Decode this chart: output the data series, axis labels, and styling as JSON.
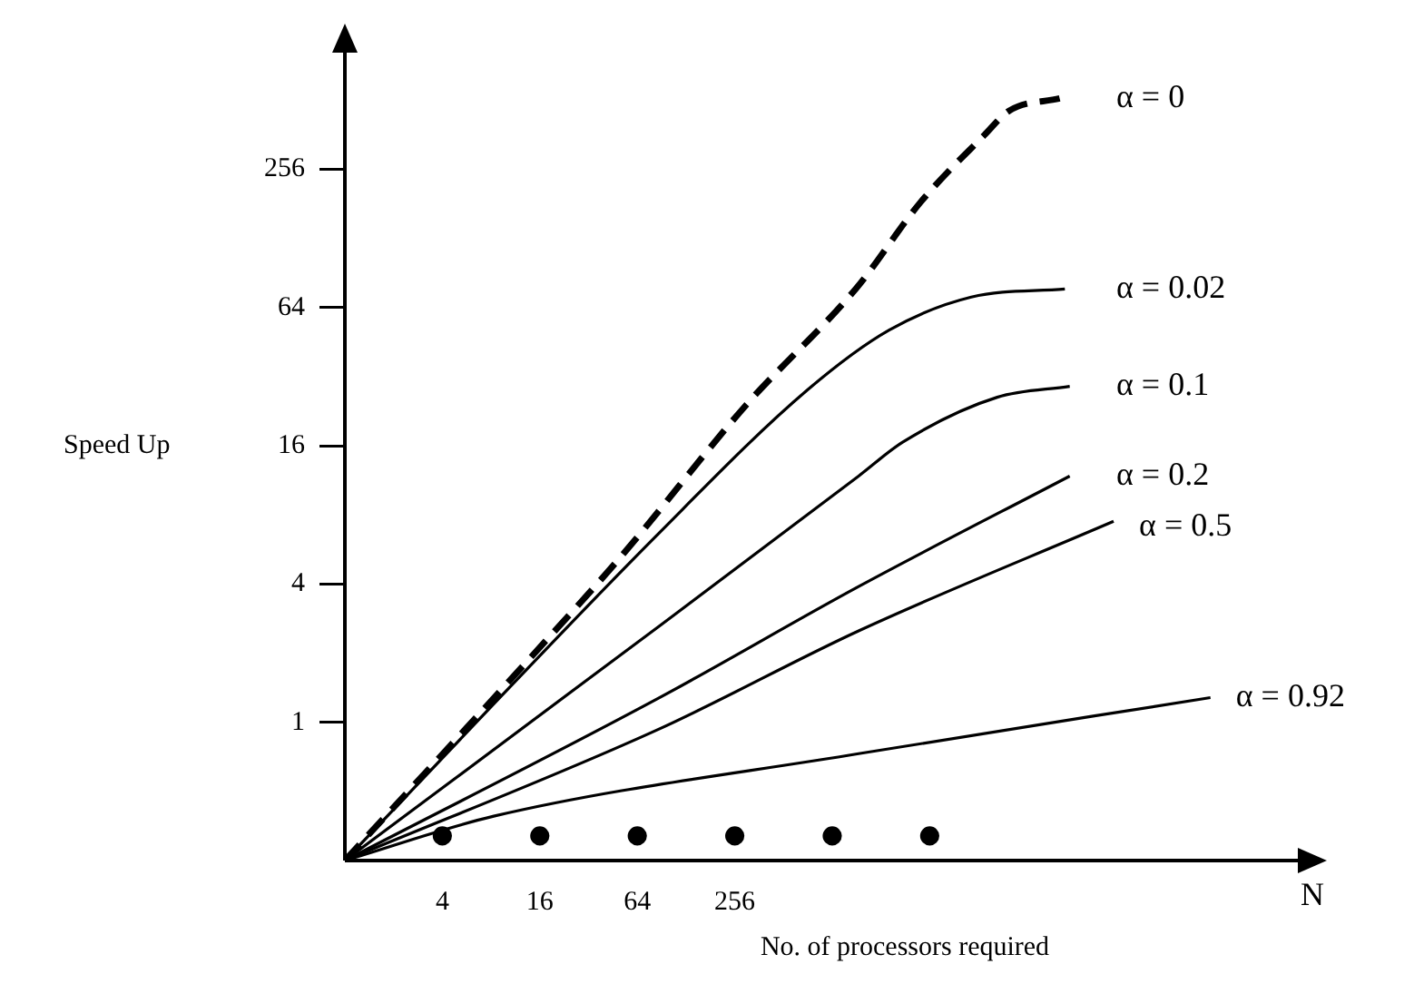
{
  "chart_data": {
    "type": "line",
    "xlabel": "No. of processors required",
    "ylabel": "Speed Up",
    "log": "xy",
    "xlim": [
      1,
      1048576
    ],
    "ylim": [
      0.25,
      1024
    ],
    "xticks": [
      4,
      16,
      64,
      256
    ],
    "yticks": [
      1,
      4,
      16,
      64,
      256
    ],
    "grid": false,
    "legend": false,
    "marker": "none",
    "series": [
      {
        "name": "α = 0",
        "color": "#000000",
        "line_style": "dashed",
        "x": [
          1,
          14.1,
          50,
          300,
          1450,
          3600,
          8900,
          12700,
          26000
        ],
        "values": [
          0.25,
          1.92,
          5.2,
          24,
          78,
          184,
          360,
          460,
          520
        ]
      },
      {
        "name": "α = 0.02",
        "color": "#000000",
        "line_style": "solid",
        "x": [
          1,
          86,
          720,
          2300,
          7400,
          28000
        ],
        "values": [
          0.25,
          6.6,
          28,
          51,
          71,
          77
        ]
      },
      {
        "name": "α = 0.1",
        "color": "#000000",
        "line_style": "solid",
        "x": [
          1,
          86,
          1490,
          2800,
          10700,
          30000
        ],
        "values": [
          0.25,
          2.6,
          11.8,
          16.6,
          26,
          29
        ]
      },
      {
        "name": "α = 0.2",
        "color": "#000000",
        "line_style": "solid",
        "x": [
          1,
          86,
          1490,
          30000
        ],
        "values": [
          0.25,
          1.27,
          3.9,
          11.8
        ]
      },
      {
        "name": "α = 0.5",
        "color": "#000000",
        "line_style": "solid",
        "x": [
          1,
          86,
          1490,
          56000
        ],
        "values": [
          0.25,
          0.93,
          2.5,
          7.5
        ]
      },
      {
        "name": "α = 0.92",
        "color": "#000000",
        "line_style": "solid",
        "x": [
          1,
          8.3,
          1490,
          222000
        ],
        "values": [
          0.25,
          0.39,
          0.73,
          1.28
        ]
      },
      {
        "type": "scatter",
        "marker": "circle",
        "color": "#000000",
        "x": [
          4,
          16,
          64,
          256,
          1024,
          4096
        ],
        "values": [
          0.32,
          0.32,
          0.32,
          0.32,
          0.32,
          0.32
        ]
      }
    ],
    "annotations": [
      "N"
    ]
  }
}
